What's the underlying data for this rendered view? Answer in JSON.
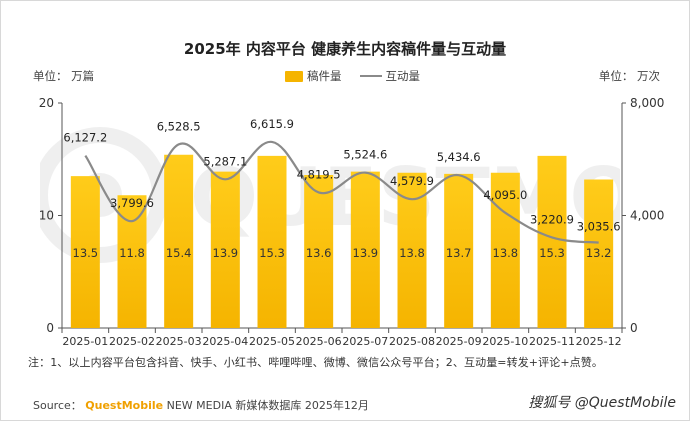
{
  "title": "2025年 内容平台 健康养生内容稿件量与互动量",
  "unit_left": "单位：  万篇",
  "unit_right": "单位：  万次",
  "legend": {
    "bar_label": "稿件量",
    "line_label": "互动量"
  },
  "note": "注：1、以上内容平台包含抖音、快手、小红书、哔哩哔哩、微博、微信公众号平台；2、互动量=转发+评论+点赞。",
  "source": {
    "prefix": "Source：",
    "brand": "QuestMobile",
    "rest": "NEW MEDIA 新媒体数据库 2025年12月"
  },
  "watermark": "搜狐号 @QuestMobile",
  "colors": {
    "bar": "#f5b400",
    "bar_light": "#ffcc1a",
    "line": "#8a8a8a"
  },
  "chart_data": {
    "type": "bar+line",
    "title": "2025年 内容平台 健康养生内容稿件量与互动量",
    "categories": [
      "2025-01",
      "2025-02",
      "2025-03",
      "2025-04",
      "2025-05",
      "2025-06",
      "2025-07",
      "2025-08",
      "2025-09",
      "2025-10",
      "2025-11",
      "2025-12"
    ],
    "series": [
      {
        "name": "稿件量",
        "type": "bar",
        "axis": "left",
        "unit": "万篇",
        "values": [
          13.5,
          11.8,
          15.4,
          13.9,
          15.3,
          13.6,
          13.9,
          13.8,
          13.7,
          13.8,
          15.3,
          13.2
        ],
        "labels": [
          "13.5",
          "11.8",
          "15.4",
          "13.9",
          "15.3",
          "13.6",
          "13.9",
          "13.8",
          "13.7",
          "13.8",
          "15.3",
          "13.2"
        ]
      },
      {
        "name": "互动量",
        "type": "line",
        "axis": "right",
        "unit": "万次",
        "values": [
          6127.2,
          3799.6,
          6528.5,
          5287.1,
          6615.9,
          4819.5,
          5524.6,
          4579.9,
          5434.6,
          4095.0,
          3220.9,
          3035.6
        ],
        "labels": [
          "6,127.2",
          "3,799.6",
          "6,528.5",
          "5,287.1",
          "6,615.9",
          "4,819.5",
          "5,524.6",
          "4,579.9",
          "5,434.6",
          "4,095.0",
          "3,220.9",
          "3,035.6"
        ]
      }
    ],
    "y_left": {
      "min": 0,
      "max": 20,
      "ticks": [
        0,
        10,
        20
      ],
      "tick_labels": [
        "0",
        "10",
        "20"
      ]
    },
    "y_right": {
      "min": 0,
      "max": 8000,
      "ticks": [
        0,
        4000,
        8000
      ],
      "tick_labels": [
        "0",
        "4,000",
        "8,000"
      ]
    },
    "grid": false,
    "legend_position": "top-center"
  }
}
